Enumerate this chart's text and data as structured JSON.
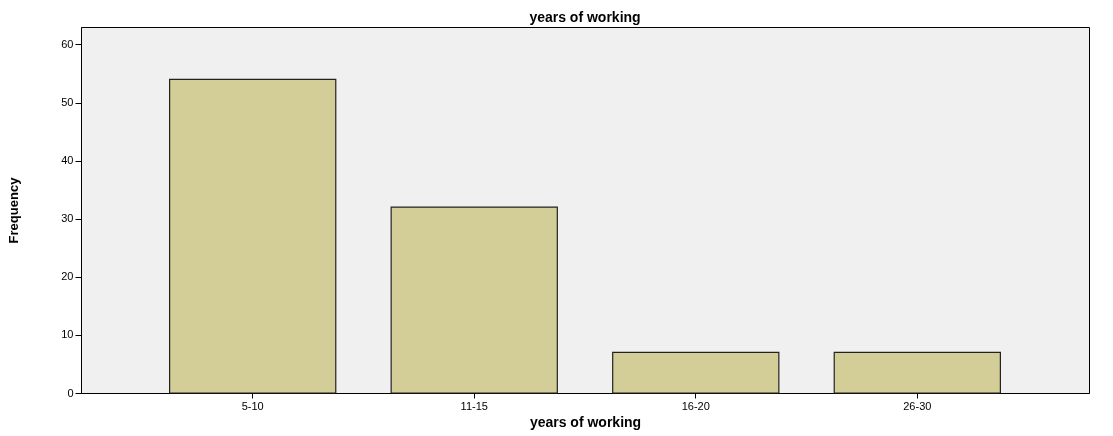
{
  "chart_data": {
    "type": "bar",
    "title": "years of working",
    "xlabel": "years of working",
    "ylabel": "Frequency",
    "categories": [
      "5-10",
      "11-15",
      "16-20",
      "26-30"
    ],
    "values": [
      54,
      32,
      7,
      7
    ],
    "color": "#d3ce97",
    "ylim": [
      0,
      63
    ],
    "yticks": [
      0,
      10,
      20,
      30,
      40,
      50,
      60
    ],
    "grid": false
  }
}
